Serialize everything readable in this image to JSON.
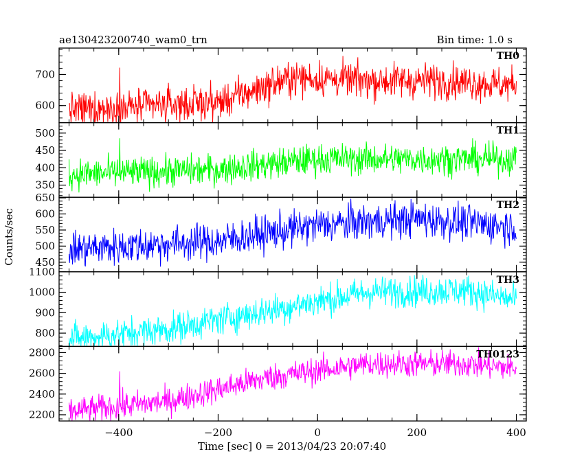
{
  "chart_data": {
    "type": "line",
    "title": "ae130423200740_wam0_trn",
    "bin_time": "Bin time: 1.0 s",
    "xlabel": "Time [sec] 0 = 2013/04/23 20:07:40",
    "ylabel": "Counts/sec",
    "xlim": [
      -520,
      420
    ],
    "x_ticks": [
      -400,
      -200,
      0,
      200,
      400
    ],
    "x_tick_labels": [
      "−400",
      "−200",
      "0",
      "200",
      "400"
    ],
    "x_range_data": [
      -500,
      400
    ],
    "grid": false,
    "panels": [
      {
        "name": "TH0",
        "color": "#ff0000",
        "ylim": [
          545,
          785
        ],
        "y_ticks": [
          600,
          700
        ],
        "trend": {
          "x": [
            -500,
            -200,
            -50,
            100,
            250,
            400
          ],
          "y": [
            585,
            610,
            690,
            680,
            680,
            665
          ]
        },
        "noise_sd": 28,
        "spikes": [
          {
            "x": -398,
            "y": 722
          }
        ]
      },
      {
        "name": "TH1",
        "color": "#00ff00",
        "ylim": [
          315,
          530
        ],
        "y_ticks": [
          350,
          400,
          450,
          500
        ],
        "trend": {
          "x": [
            -500,
            -200,
            0,
            200,
            400
          ],
          "y": [
            380,
            395,
            425,
            425,
            425
          ]
        },
        "noise_sd": 22,
        "spikes": [
          {
            "x": -398,
            "y": 485
          }
        ]
      },
      {
        "name": "TH2",
        "color": "#0000ff",
        "ylim": [
          420,
          652
        ],
        "y_ticks": [
          450,
          500,
          550,
          600,
          650
        ],
        "trend": {
          "x": [
            -500,
            -200,
            0,
            200,
            400
          ],
          "y": [
            490,
            515,
            565,
            585,
            560
          ]
        },
        "noise_sd": 28
      },
      {
        "name": "TH3",
        "color": "#00ffff",
        "ylim": [
          735,
          1100
        ],
        "y_ticks": [
          800,
          900,
          1000,
          1100
        ],
        "trend": {
          "x": [
            -500,
            -300,
            -100,
            100,
            300,
            400
          ],
          "y": [
            770,
            820,
            910,
            1000,
            1010,
            960
          ]
        },
        "noise_sd": 38
      },
      {
        "name": "TH0123",
        "color": "#ff00ff",
        "ylim": [
          2140,
          2860
        ],
        "y_ticks": [
          2200,
          2400,
          2600,
          2800
        ],
        "trend": {
          "x": [
            -500,
            -300,
            -100,
            100,
            300,
            400
          ],
          "y": [
            2230,
            2330,
            2560,
            2690,
            2690,
            2650
          ]
        },
        "noise_sd": 65,
        "spikes": [
          {
            "x": -398,
            "y": 2620
          }
        ]
      }
    ]
  }
}
